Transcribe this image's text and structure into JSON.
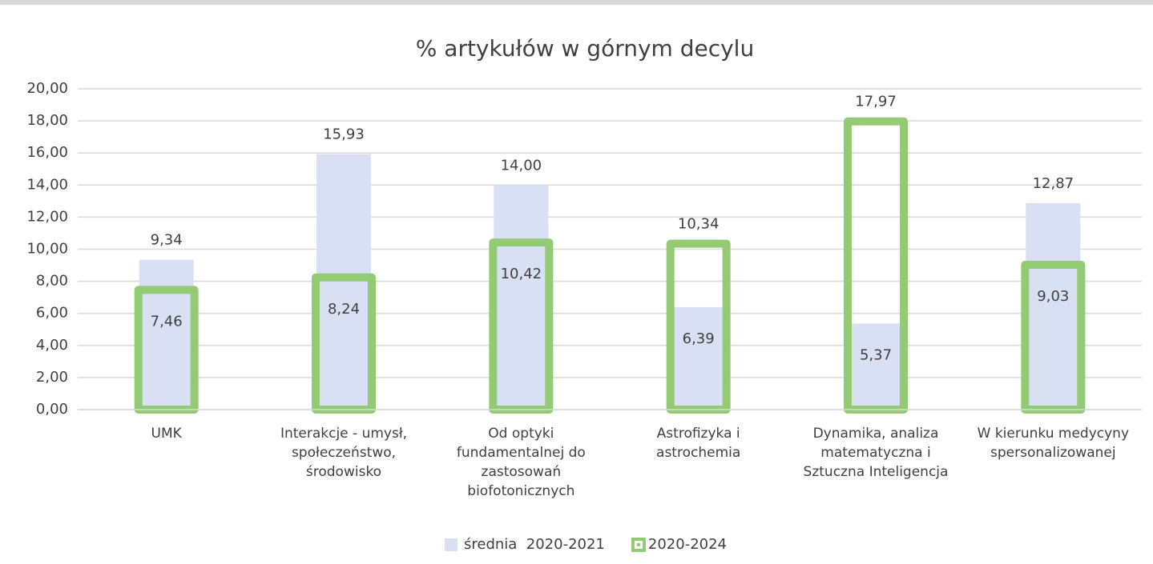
{
  "chart_data": {
    "type": "bar",
    "title": "% artykułów w górnym decylu",
    "categories": [
      "UMK",
      "Interakcje - umysł, społeczeństwo, środowisko",
      "Od optyki fundamentalnej do zastosowań biofotonicznych",
      "Astrofizyka i astrochemia",
      "Dynamika, analiza matematyczna i Sztuczna Inteligencja",
      "W kierunku medycyny spersonalizowanej"
    ],
    "series": [
      {
        "name": "średnia  2020-2021",
        "color": "#dae0f3",
        "style": "filled",
        "values": [
          9.34,
          15.93,
          14.0,
          6.39,
          5.37,
          12.87
        ],
        "value_labels": [
          "9,34",
          "15,93",
          "14,00",
          "6,39",
          "5,37",
          "12,87"
        ]
      },
      {
        "name": "2020-2024",
        "color": "#93cb74",
        "style": "outline",
        "values": [
          7.46,
          8.24,
          10.42,
          10.34,
          17.97,
          9.03
        ],
        "value_labels": [
          "7,46",
          "8,24",
          "10,42",
          "10,34",
          "17,97",
          "9,03"
        ]
      }
    ],
    "ylim": [
      0,
      20
    ],
    "yticks": [
      {
        "value": 0,
        "label": "0,00"
      },
      {
        "value": 2,
        "label": "2,00"
      },
      {
        "value": 4,
        "label": "4,00"
      },
      {
        "value": 6,
        "label": "6,00"
      },
      {
        "value": 8,
        "label": "8,00"
      },
      {
        "value": 10,
        "label": "10,00"
      },
      {
        "value": 12,
        "label": "12,00"
      },
      {
        "value": 14,
        "label": "14,00"
      },
      {
        "value": 16,
        "label": "16,00"
      },
      {
        "value": 18,
        "label": "18,00"
      },
      {
        "value": 20,
        "label": "20,00"
      }
    ],
    "grid": true,
    "legend": "bottom"
  }
}
